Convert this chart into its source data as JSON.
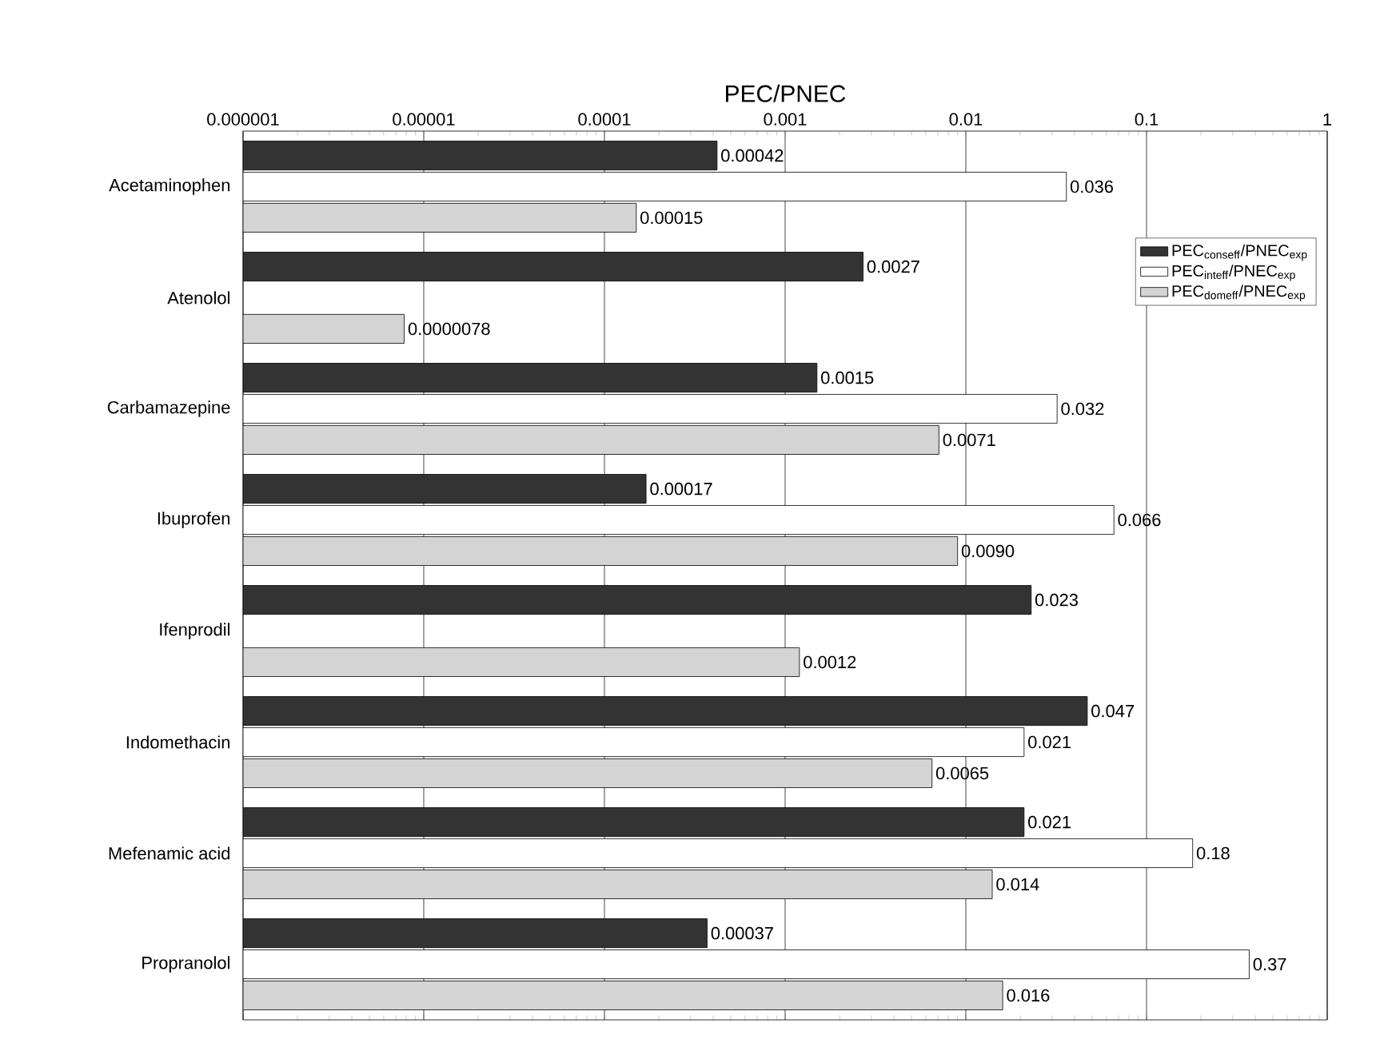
{
  "chart_data": {
    "type": "bar",
    "orientation": "horizontal",
    "log": "x",
    "xlabel": "PEC/PNEC",
    "categories": [
      "Acetaminophen",
      "Atenolol",
      "Carbamazepine",
      "Ibuprofen",
      "Ifenprodil",
      "Indomethacin",
      "Mefenamic acid",
      "Propranolol"
    ],
    "series": [
      {
        "name": "PEC$_{conseff}$/PNEC$_{exp}$",
        "color": "#333333",
        "values": [
          0.00042,
          0.0027,
          0.0015,
          0.00017,
          0.023,
          0.047,
          0.021,
          0.00037
        ],
        "value_labels": [
          "0.00042",
          "0.0027",
          "0.0015",
          "0.00017",
          "0.023",
          "0.047",
          "0.021",
          "0.00037"
        ]
      },
      {
        "name": "PEC$_{inteff}$/PNEC$_{exp}$",
        "color": "#ffffff",
        "values": [
          0.036,
          null,
          0.032,
          0.066,
          null,
          0.021,
          0.18,
          0.37
        ],
        "value_labels": [
          "0.036",
          null,
          "0.032",
          "0.066",
          null,
          "0.021",
          "0.18",
          "0.37"
        ]
      },
      {
        "name": "PEC$_{domeff}$/PNEC$_{exp}$",
        "color": "#d4d4d4",
        "values": [
          0.00015,
          7.8e-06,
          0.0071,
          0.009,
          0.0012,
          0.0065,
          0.014,
          0.016
        ],
        "value_labels": [
          "0.00015",
          "0.0000078",
          "0.0071",
          "0.0090",
          "0.0012",
          "0.0065",
          "0.014",
          "0.016"
        ]
      }
    ],
    "xlim": [
      1e-06,
      1
    ],
    "xticks": [
      {
        "value": 1e-06,
        "label": "0.000001"
      },
      {
        "value": 1e-05,
        "label": "0.00001"
      },
      {
        "value": 0.0001,
        "label": "0.0001"
      },
      {
        "value": 0.001,
        "label": "0.001"
      },
      {
        "value": 0.01,
        "label": "0.01"
      },
      {
        "value": 0.1,
        "label": "0.1"
      },
      {
        "value": 1,
        "label": "1"
      }
    ],
    "grid": "x",
    "legend": "top right"
  }
}
